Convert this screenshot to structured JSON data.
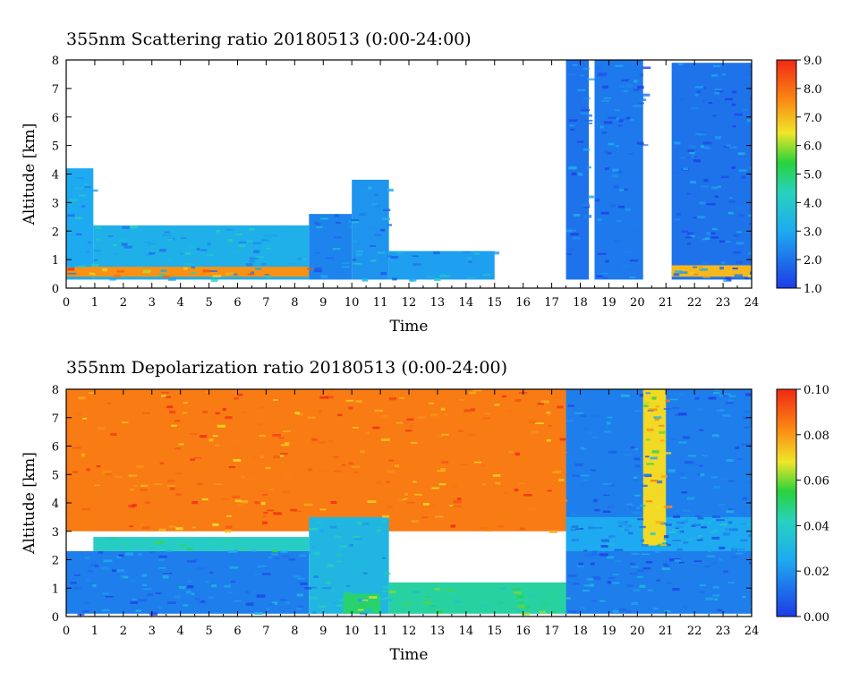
{
  "chart_data": [
    {
      "type": "heatmap",
      "title": "355nm Scattering ratio  20180513 (0:00-24:00)",
      "xlabel": "Time",
      "ylabel": "Altitude [km]",
      "xlim": [
        0,
        24
      ],
      "ylim": [
        0,
        8
      ],
      "x_ticks": [
        "0",
        "1",
        "2",
        "3",
        "4",
        "5",
        "6",
        "7",
        "8",
        "9",
        "10",
        "11",
        "12",
        "13",
        "14",
        "15",
        "16",
        "17",
        "18",
        "19",
        "20",
        "21",
        "22",
        "23",
        "24"
      ],
      "y_ticks": [
        "0",
        "1",
        "2",
        "3",
        "4",
        "5",
        "6",
        "7",
        "8"
      ],
      "colorbar": {
        "min": 1.0,
        "max": 9.0,
        "labels": [
          "1.0",
          "2.0",
          "3.0",
          "4.0",
          "5.0",
          "6.0",
          "7.0",
          "8.0",
          "9.0"
        ]
      },
      "features": [
        {
          "t0": 0.0,
          "t1": 0.95,
          "z0": 0.3,
          "z1": 4.2,
          "value": 3.0
        },
        {
          "t0": 0.95,
          "t1": 8.5,
          "z0": 0.3,
          "z1": 2.2,
          "value": 3.2
        },
        {
          "t0": 0.0,
          "t1": 8.5,
          "z0": 0.4,
          "z1": 0.75,
          "value": 7.5
        },
        {
          "t0": 8.5,
          "t1": 10.0,
          "z0": 0.3,
          "z1": 2.6,
          "value": 2.3
        },
        {
          "t0": 10.0,
          "t1": 11.3,
          "z0": 0.3,
          "z1": 3.8,
          "value": 2.6
        },
        {
          "t0": 11.3,
          "t1": 15.0,
          "z0": 0.3,
          "z1": 1.3,
          "value": 2.8
        },
        {
          "t0": 17.5,
          "t1": 18.3,
          "z0": 0.3,
          "z1": 8.0,
          "value": 2.0
        },
        {
          "t0": 18.5,
          "t1": 20.2,
          "z0": 0.3,
          "z1": 8.0,
          "value": 2.1
        },
        {
          "t0": 21.2,
          "t1": 24.0,
          "z0": 0.3,
          "z1": 7.9,
          "value": 2.0
        },
        {
          "t0": 21.2,
          "t1": 24.0,
          "z0": 0.4,
          "z1": 0.8,
          "value": 7.0
        }
      ]
    },
    {
      "type": "heatmap",
      "title": "355nm Depolarization ratio  20180513 (0:00-24:00)",
      "xlabel": "Time",
      "ylabel": "Altitude [km]",
      "xlim": [
        0,
        24
      ],
      "ylim": [
        0,
        8
      ],
      "x_ticks": [
        "0",
        "1",
        "2",
        "3",
        "4",
        "5",
        "6",
        "7",
        "8",
        "9",
        "10",
        "11",
        "12",
        "13",
        "14",
        "15",
        "16",
        "17",
        "18",
        "19",
        "20",
        "21",
        "22",
        "23",
        "24"
      ],
      "y_ticks": [
        "0",
        "1",
        "2",
        "3",
        "4",
        "5",
        "6",
        "7",
        "8"
      ],
      "colorbar": {
        "min": 0.0,
        "max": 0.1,
        "labels": [
          "0.00",
          "0.02",
          "0.04",
          "0.06",
          "0.08",
          "0.10"
        ]
      },
      "features": [
        {
          "t0": 0.0,
          "t1": 17.5,
          "z0": 3.0,
          "z1": 8.0,
          "value": 0.085
        },
        {
          "t0": 0.0,
          "t1": 8.5,
          "z0": 0.1,
          "z1": 2.3,
          "value": 0.015
        },
        {
          "t0": 0.95,
          "t1": 8.5,
          "z0": 2.3,
          "z1": 2.8,
          "value": 0.04
        },
        {
          "t0": 8.5,
          "t1": 11.3,
          "z0": 0.1,
          "z1": 3.5,
          "value": 0.03
        },
        {
          "t0": 9.7,
          "t1": 11.0,
          "z0": 0.1,
          "z1": 0.8,
          "value": 0.05
        },
        {
          "t0": 11.3,
          "t1": 17.5,
          "z0": 0.1,
          "z1": 1.2,
          "value": 0.045
        },
        {
          "t0": 17.5,
          "t1": 24.0,
          "z0": 0.1,
          "z1": 8.0,
          "value": 0.015
        },
        {
          "t0": 17.5,
          "t1": 24.0,
          "z0": 2.3,
          "z1": 3.5,
          "value": 0.025
        },
        {
          "t0": 20.2,
          "t1": 21.0,
          "z0": 2.5,
          "z1": 8.0,
          "value": 0.07
        }
      ]
    }
  ]
}
